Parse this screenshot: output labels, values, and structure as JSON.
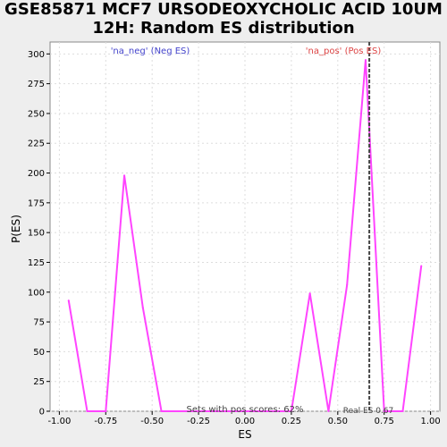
{
  "chart_data": {
    "type": "line",
    "title_line1": "GSE85871 MCF7 URSODEOXYCHOLIC ACID 10UM",
    "title_line2": "12H: Random ES distribution",
    "xlabel": "ES",
    "ylabel": "P(ES)",
    "xlim": [
      -1.05,
      1.05
    ],
    "ylim": [
      0,
      310
    ],
    "xticks": [
      "-1.00",
      "-0.75",
      "-0.50",
      "-0.25",
      "0.00",
      "0.25",
      "0.50",
      "0.75",
      "1.00"
    ],
    "yticks": [
      "0",
      "25",
      "50",
      "75",
      "100",
      "125",
      "150",
      "175",
      "200",
      "225",
      "250",
      "275",
      "300"
    ],
    "grid": true,
    "series": [
      {
        "color": "#ff44ff",
        "x": [
          -0.95,
          -0.85,
          -0.75,
          -0.65,
          -0.55,
          -0.45,
          -0.35,
          -0.25,
          -0.15,
          -0.05,
          0.05,
          0.15,
          0.25,
          0.35,
          0.45,
          0.55,
          0.65,
          0.75,
          0.85,
          0.95
        ],
        "y": [
          93,
          0,
          0,
          198,
          87,
          0,
          0,
          0,
          0,
          0,
          0,
          0,
          0,
          99,
          0,
          106,
          295,
          0,
          0,
          122
        ]
      }
    ],
    "real_es": 0.67,
    "real_es_color": "#444444",
    "annotations": {
      "neg_label": "'na_neg' (Neg ES)",
      "neg_color": "#4444cc",
      "pos_label": "'na_pos' (Pos ES)",
      "pos_color": "#dd4444",
      "sets_label": "Sets with pos scores: 62%",
      "real_es_label": "Real ES 0.67"
    }
  }
}
